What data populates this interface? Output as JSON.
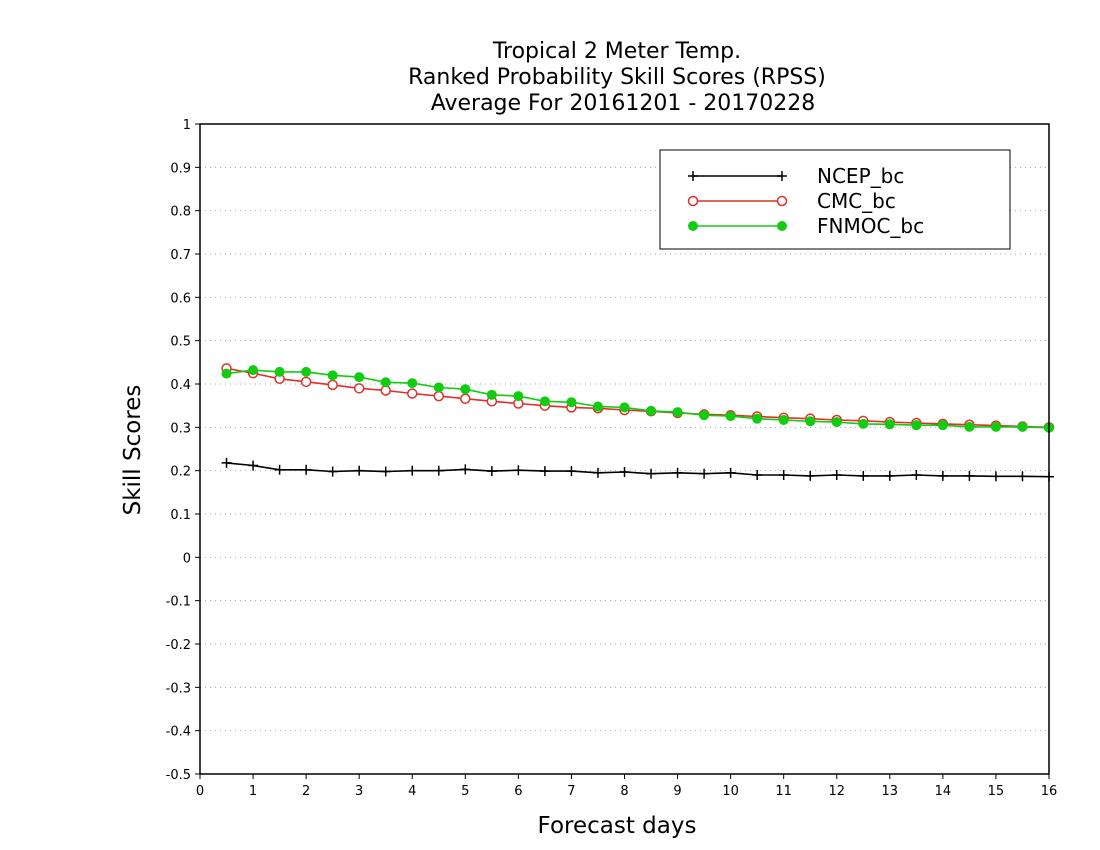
{
  "chart_data": {
    "type": "line",
    "title": [
      "Tropical 2 Meter Temp.",
      "Ranked Probability Skill Scores (RPSS)",
      "Average For 20161201 - 20170228"
    ],
    "xlabel": "Forecast days",
    "ylabel": "Skill Scores",
    "xlim": [
      0,
      16
    ],
    "ylim": [
      -0.5,
      1
    ],
    "x_ticks": [
      "0",
      "1",
      "2",
      "3",
      "4",
      "5",
      "6",
      "7",
      "8",
      "9",
      "10",
      "11",
      "12",
      "13",
      "14",
      "15",
      "16"
    ],
    "y_ticks": [
      "1",
      "0.9",
      "0.8",
      "0.7",
      "0.6",
      "0.5",
      "0.4",
      "0.3",
      "0.2",
      "0.1",
      "0",
      "-0.1",
      "-0.2",
      "-0.3",
      "-0.4",
      "-0.5"
    ],
    "grid": true,
    "legend_position": "top-right",
    "x": [
      0.5,
      1,
      1.5,
      2,
      2.5,
      3,
      3.5,
      4,
      4.5,
      5,
      5.5,
      6,
      6.5,
      7,
      7.5,
      8,
      8.5,
      9,
      9.5,
      10,
      10.5,
      11,
      11.5,
      12,
      12.5,
      13,
      13.5,
      14,
      14.5,
      15,
      15.5,
      16
    ],
    "series": [
      {
        "name": "NCEP_bc",
        "color": "#000000",
        "marker": "plus",
        "values": [
          0.218,
          0.212,
          0.202,
          0.202,
          0.198,
          0.2,
          0.198,
          0.2,
          0.2,
          0.203,
          0.199,
          0.201,
          0.199,
          0.199,
          0.195,
          0.197,
          0.193,
          0.195,
          0.193,
          0.195,
          0.19,
          0.19,
          0.188,
          0.19,
          0.188,
          0.188,
          0.19,
          0.188,
          0.188,
          0.187,
          0.187,
          0.186
        ]
      },
      {
        "name": "CMC_bc",
        "color": "#e0302a",
        "marker": "open-circle",
        "values": [
          0.436,
          0.425,
          0.412,
          0.405,
          0.398,
          0.39,
          0.385,
          0.378,
          0.372,
          0.366,
          0.36,
          0.355,
          0.35,
          0.346,
          0.344,
          0.34,
          0.337,
          0.333,
          0.33,
          0.328,
          0.325,
          0.322,
          0.32,
          0.317,
          0.315,
          0.312,
          0.31,
          0.308,
          0.306,
          0.304,
          0.302,
          0.3
        ]
      },
      {
        "name": "FNMOC_bc",
        "color": "#12cc12",
        "marker": "filled-circle",
        "values": [
          0.424,
          0.432,
          0.428,
          0.428,
          0.42,
          0.416,
          0.404,
          0.402,
          0.392,
          0.388,
          0.375,
          0.372,
          0.36,
          0.358,
          0.348,
          0.346,
          0.338,
          0.335,
          0.328,
          0.326,
          0.32,
          0.317,
          0.314,
          0.312,
          0.308,
          0.307,
          0.305,
          0.305,
          0.301,
          0.301,
          0.301,
          0.299
        ]
      }
    ]
  }
}
